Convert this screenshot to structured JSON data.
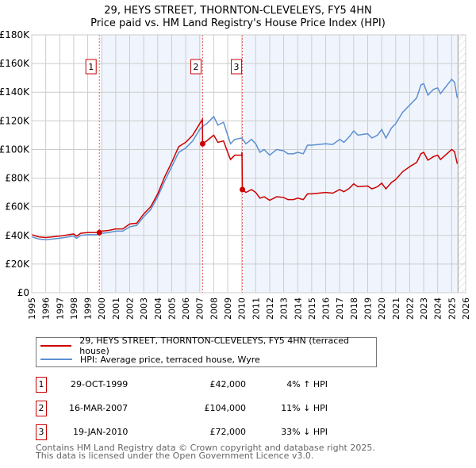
{
  "title": "29, HEYS STREET, THORNTON-CLEVELEYS, FY5 4HN",
  "subtitle": "Price paid vs. HM Land Registry's House Price Index (HPI)",
  "chart_data": {
    "type": "line",
    "ylim": [
      0,
      180000
    ],
    "xlim": [
      1995,
      2026
    ],
    "yticks": [
      "£0",
      "£20K",
      "£40K",
      "£60K",
      "£80K",
      "£100K",
      "£120K",
      "£140K",
      "£160K",
      "£180K"
    ],
    "xticks": [
      "1995",
      "1996",
      "1997",
      "1998",
      "1999",
      "2000",
      "2001",
      "2002",
      "2003",
      "2004",
      "2005",
      "2006",
      "2007",
      "2008",
      "2009",
      "2010",
      "2011",
      "2012",
      "2013",
      "2014",
      "2015",
      "2016",
      "2017",
      "2018",
      "2019",
      "2020",
      "2021",
      "2022",
      "2023",
      "2024",
      "2025",
      "2026"
    ],
    "grid": true,
    "series": [
      {
        "name": "29, HEYS STREET, THORNTON-CLEVELEYS, FY5 4HN (terraced house)",
        "color": "#cc0000",
        "x": [
          1995,
          1995.5,
          1996,
          1997,
          1998,
          1998.2,
          1998.5,
          1999,
          1999.83,
          2000,
          2000.5,
          2001,
          2001.5,
          2002,
          2002.5,
          2003,
          2003.5,
          2004,
          2004.5,
          2005,
          2005.5,
          2006,
          2006.5,
          2007,
          2007.19,
          2007.21,
          2007.5,
          2008,
          2008.3,
          2008.7,
          2009,
          2009.2,
          2009.5,
          2010,
          2010.02,
          2010.05,
          2010.3,
          2010.7,
          2011,
          2011.3,
          2011.6,
          2012,
          2012.5,
          2013,
          2013.3,
          2013.7,
          2014,
          2014.4,
          2014.7,
          2015,
          2016,
          2016.5,
          2017,
          2017.3,
          2017.7,
          2018,
          2018.3,
          2019,
          2019.3,
          2019.7,
          2020,
          2020.3,
          2020.7,
          2021,
          2021.5,
          2022,
          2022.5,
          2022.8,
          2023,
          2023.3,
          2023.7,
          2024,
          2024.2,
          2024.6,
          2025,
          2025.2,
          2025.4
        ],
        "values": [
          40.5,
          39,
          38.5,
          39.5,
          41,
          39.5,
          41.5,
          42,
          42,
          43,
          43.5,
          44.5,
          44.5,
          48,
          48.5,
          55,
          60,
          69,
          81,
          91,
          102,
          105,
          110,
          118,
          121,
          104,
          106,
          110,
          105,
          106,
          98,
          93,
          96,
          96,
          98,
          72,
          70,
          72,
          70,
          66,
          67,
          64.5,
          67,
          66.5,
          65,
          65,
          66,
          65,
          69,
          69,
          70,
          69.5,
          72,
          70.5,
          73,
          76,
          74,
          74.5,
          72.5,
          74,
          76.5,
          72.5,
          77,
          79,
          84.5,
          88,
          91,
          97,
          98,
          92.5,
          95,
          96,
          93,
          96.5,
          100,
          98.5,
          90
        ]
      },
      {
        "name": "HPI: Average price, terraced house, Wyre",
        "color": "#5b8fd0",
        "x": [
          1995,
          1995.5,
          1996,
          1997,
          1998,
          1998.2,
          1998.5,
          1999,
          1999.83,
          2000,
          2000.5,
          2001,
          2001.5,
          2002,
          2002.5,
          2003,
          2003.5,
          2004,
          2004.5,
          2005,
          2005.5,
          2006,
          2006.5,
          2007,
          2007.2,
          2007.5,
          2008,
          2008.3,
          2008.7,
          2009,
          2009.2,
          2009.5,
          2010,
          2010.3,
          2010.7,
          2011,
          2011.3,
          2011.6,
          2012,
          2012.5,
          2013,
          2013.3,
          2013.7,
          2014,
          2014.4,
          2014.7,
          2015,
          2016,
          2016.5,
          2017,
          2017.3,
          2017.7,
          2018,
          2018.3,
          2019,
          2019.3,
          2019.7,
          2020,
          2020.3,
          2020.7,
          2021,
          2021.5,
          2022,
          2022.5,
          2022.8,
          2023,
          2023.3,
          2023.7,
          2024,
          2024.2,
          2024.6,
          2025,
          2025.2,
          2025.4
        ],
        "values": [
          39,
          37.5,
          37,
          38,
          39.5,
          38,
          40,
          40.5,
          40.5,
          41.5,
          42,
          43,
          43,
          46,
          47,
          53,
          58,
          67,
          78,
          88,
          98,
          101,
          106,
          114,
          116,
          118,
          123,
          117,
          119,
          110,
          104,
          107,
          108,
          104,
          107,
          104,
          98,
          100,
          96,
          100,
          99,
          97,
          97,
          98,
          97,
          103,
          103,
          104,
          103.5,
          107,
          105,
          109,
          113,
          110,
          111,
          108,
          110,
          114,
          108,
          115,
          118,
          126,
          131,
          136,
          145,
          146,
          138,
          142,
          143,
          139,
          144,
          149,
          147,
          136
        ]
      }
    ],
    "value_unit": "£K",
    "sales": [
      {
        "label": "1",
        "x": 1999.83,
        "value": 42
      },
      {
        "label": "2",
        "x": 2007.21,
        "value": 104
      },
      {
        "label": "3",
        "x": 2010.05,
        "value": 72
      }
    ]
  },
  "legend": {
    "red": "29, HEYS STREET, THORNTON-CLEVELEYS, FY5 4HN (terraced house)",
    "blue": "HPI: Average price, terraced house, Wyre"
  },
  "transactions": [
    {
      "num": "1",
      "date": "29-OCT-1999",
      "price": "£42,000",
      "hpi": "4% ↑ HPI"
    },
    {
      "num": "2",
      "date": "16-MAR-2007",
      "price": "£104,000",
      "hpi": "11% ↓ HPI"
    },
    {
      "num": "3",
      "date": "19-JAN-2010",
      "price": "£72,000",
      "hpi": "33% ↓ HPI"
    }
  ],
  "footer": {
    "line1": "Contains HM Land Registry data © Crown copyright and database right 2025.",
    "line2": "This data is licensed under the Open Government Licence v3.0."
  }
}
